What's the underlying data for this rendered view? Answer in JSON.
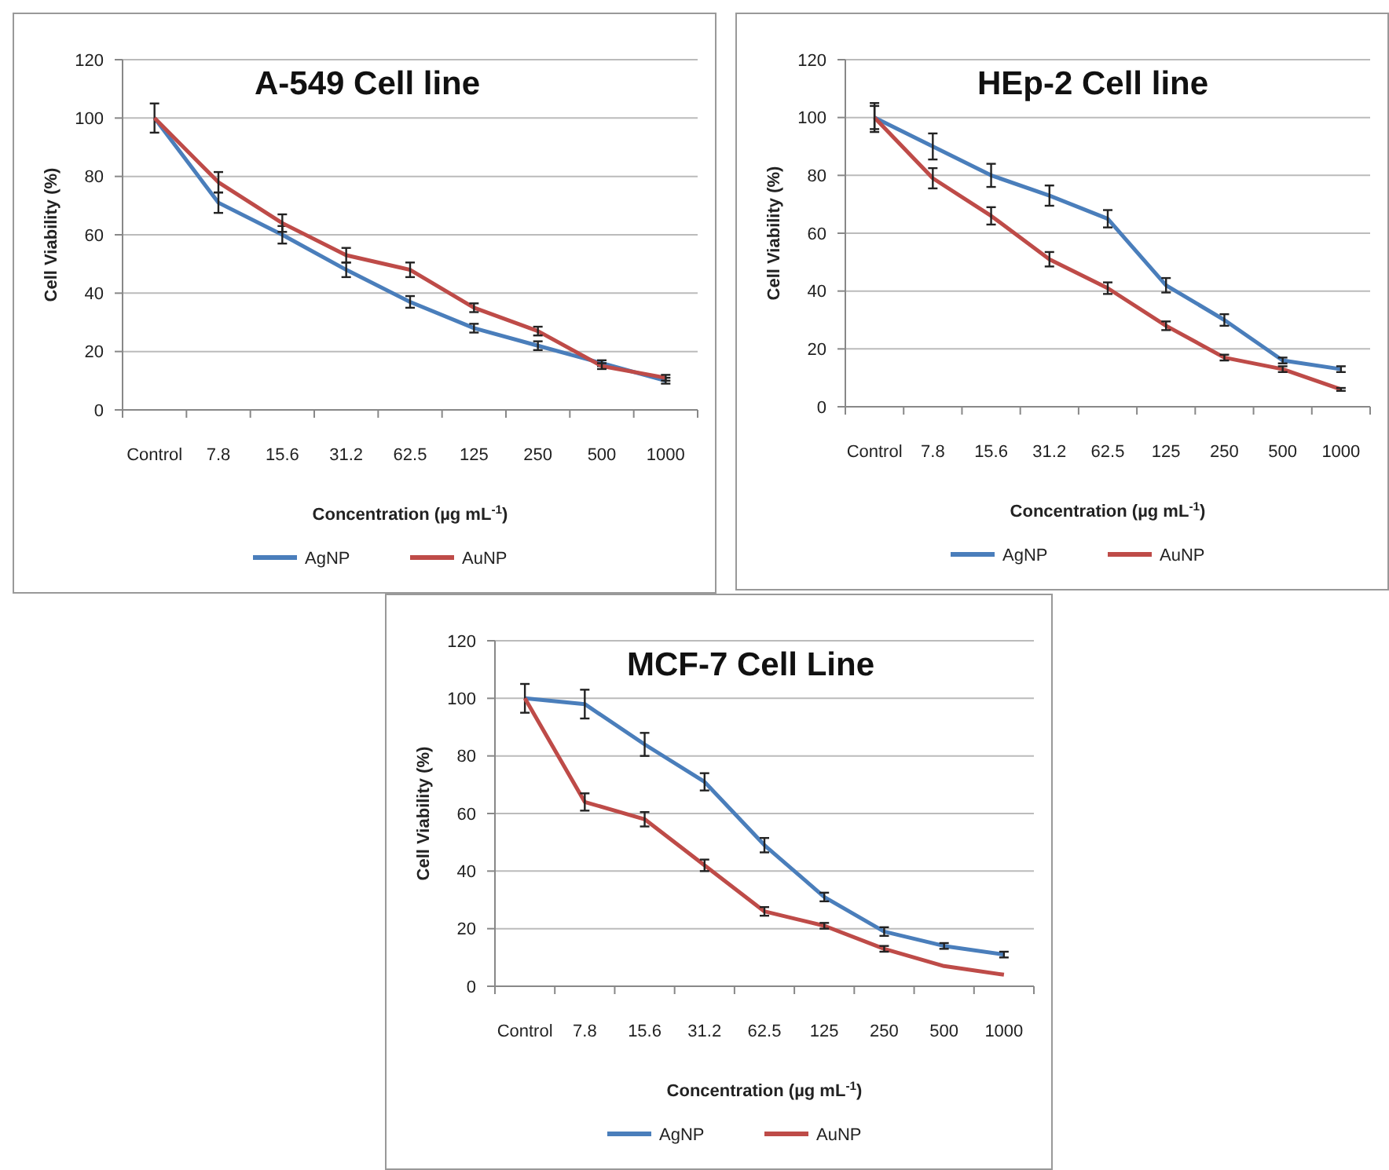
{
  "chart_data": [
    {
      "type": "line",
      "title": "A-549 Cell line",
      "xlabel": "Concentration (µg mL$^{-1}$)",
      "ylabel": "Cell Viability (%)",
      "categories": [
        "Control",
        "7.8",
        "15.6",
        "31.2",
        "62.5",
        "125",
        "250",
        "500",
        "1000"
      ],
      "ylim": [
        0,
        120
      ],
      "yticks": [
        0,
        20,
        40,
        60,
        80,
        100,
        120
      ],
      "grid": "y",
      "legend": "bottom",
      "marker": "none",
      "line_style": "solid",
      "series": [
        {
          "name": "AgNP",
          "color": "#4a7ebb",
          "values": [
            100,
            71,
            60,
            48,
            37,
            28,
            22,
            16,
            10
          ],
          "errors": [
            5,
            3.5,
            3,
            2.5,
            2,
            1.5,
            1.5,
            1,
            1
          ]
        },
        {
          "name": "AuNP",
          "color": "#be4b48",
          "values": [
            100,
            78,
            64,
            53,
            48,
            35,
            27,
            15,
            11
          ],
          "errors": [
            null,
            3.5,
            3,
            2.5,
            2.5,
            1.5,
            1.5,
            1,
            1
          ]
        }
      ]
    },
    {
      "type": "line",
      "title": "HEp-2 Cell line",
      "xlabel": "Concentration (µg mL$^{-1}$)",
      "ylabel": "Cell Viability (%)",
      "categories": [
        "Control",
        "7.8",
        "15.6",
        "31.2",
        "62.5",
        "125",
        "250",
        "500",
        "1000"
      ],
      "ylim": [
        0,
        120
      ],
      "yticks": [
        0,
        20,
        40,
        60,
        80,
        100,
        120
      ],
      "grid": "y",
      "legend": "bottom",
      "marker": "none",
      "line_style": "solid",
      "series": [
        {
          "name": "AgNP",
          "color": "#4a7ebb",
          "values": [
            100,
            90,
            80,
            73,
            65,
            42,
            30,
            16,
            13
          ],
          "errors": [
            5,
            4.5,
            4,
            3.5,
            3,
            2.5,
            2,
            1,
            1
          ]
        },
        {
          "name": "AuNP",
          "color": "#be4b48",
          "values": [
            100,
            79,
            66,
            51,
            41,
            28,
            17,
            13,
            6
          ],
          "errors": [
            4,
            3.5,
            3,
            2.5,
            2,
            1.5,
            1,
            1,
            0.5
          ]
        }
      ]
    },
    {
      "type": "line",
      "title": "MCF-7 Cell Line",
      "xlabel": "Concentration (µg mL$^{-1}$)",
      "ylabel": "Cell Viability (%)",
      "categories": [
        "Control",
        "7.8",
        "15.6",
        "31.2",
        "62.5",
        "125",
        "250",
        "500",
        "1000"
      ],
      "ylim": [
        0,
        120
      ],
      "yticks": [
        0,
        20,
        40,
        60,
        80,
        100,
        120
      ],
      "grid": "y",
      "legend": "bottom",
      "marker": "none",
      "line_style": "solid",
      "series": [
        {
          "name": "AgNP",
          "color": "#4a7ebb",
          "values": [
            100,
            98,
            84,
            71,
            49,
            31,
            19,
            14,
            11
          ],
          "errors": [
            5,
            5,
            4,
            3,
            2.5,
            1.5,
            1.5,
            1,
            1
          ]
        },
        {
          "name": "AuNP",
          "color": "#be4b48",
          "values": [
            100,
            64,
            58,
            42,
            26,
            21,
            13,
            7,
            4
          ],
          "errors": [
            null,
            3,
            2.5,
            2,
            1.5,
            1,
            1,
            null,
            null
          ]
        }
      ]
    }
  ]
}
